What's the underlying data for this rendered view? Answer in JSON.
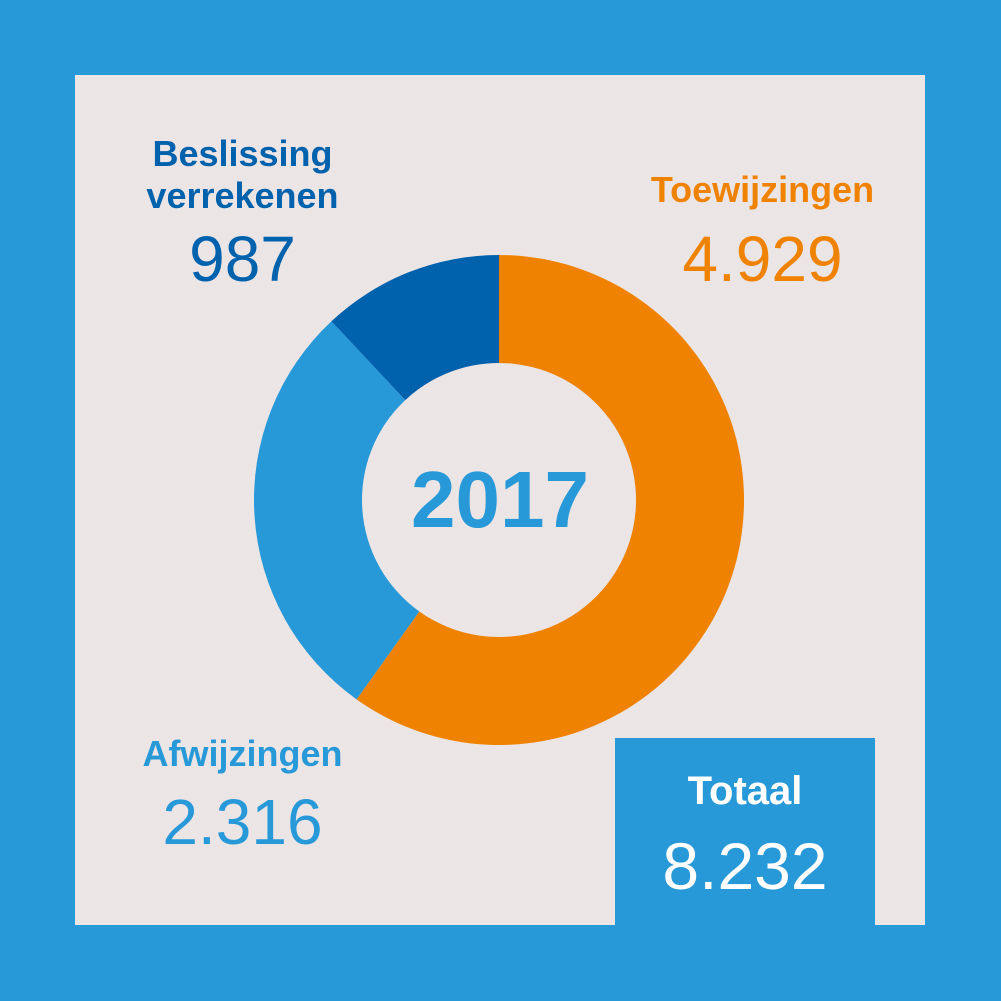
{
  "chart_data": {
    "type": "pie",
    "title": "2017",
    "categories": [
      "Toewijzingen",
      "Afwijzingen",
      "Beslissing verrekenen"
    ],
    "values": [
      4929,
      2316,
      987
    ],
    "value_labels": [
      "4.929",
      "2.316",
      "987"
    ],
    "colors": [
      "#ef8200",
      "#2899d8",
      "#0061ad"
    ],
    "label_lines": {
      "toewijzingen": [
        "Toewijzingen"
      ],
      "afwijzingen": [
        "Afwijzingen"
      ],
      "beslissing": [
        "Beslissing",
        "verrekenen"
      ]
    }
  },
  "total": {
    "label": "Totaal",
    "value": "8.232"
  },
  "colors": {
    "background": "#2899d8",
    "panel": "#ebe5e5",
    "orange": "#ef8200",
    "light_blue": "#2899d8",
    "dark_blue": "#0061ad",
    "white": "#ffffff"
  }
}
